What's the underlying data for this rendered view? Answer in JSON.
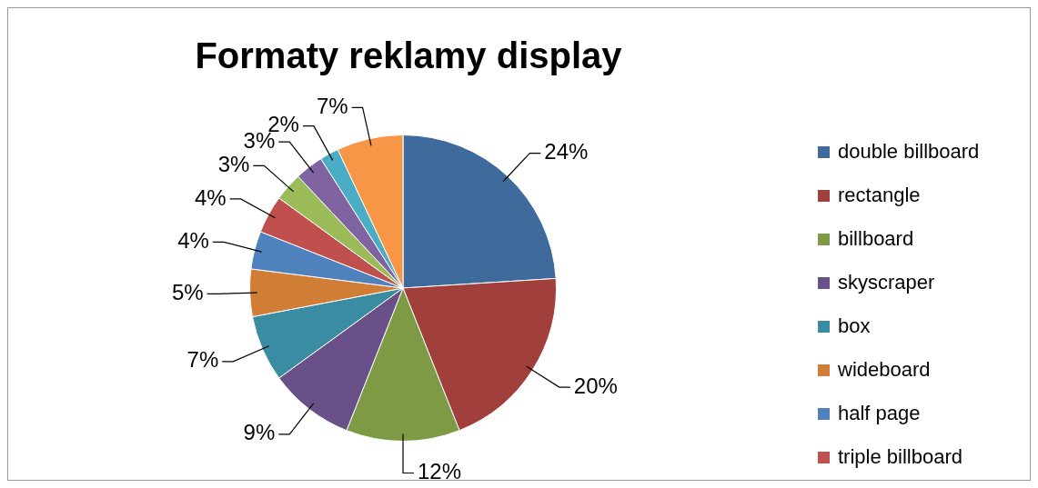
{
  "chart_data": {
    "type": "pie",
    "title": "Formaty reklamy display",
    "categories": [
      "double billboard",
      "rectangle",
      "billboard",
      "skyscraper",
      "box",
      "wideboard",
      "half page",
      "triple billboard",
      null,
      null,
      null,
      null
    ],
    "values": [
      24,
      20,
      12,
      9,
      7,
      5,
      4,
      4,
      3,
      3,
      2,
      7
    ],
    "value_labels": [
      "24%",
      "20%",
      "12%",
      "9%",
      "7%",
      "5%",
      "4%",
      "4%",
      "3%",
      "3%",
      "2%",
      "7%"
    ],
    "colors": [
      "#3f6a9c",
      "#a13f3c",
      "#7e9a45",
      "#6a5089",
      "#3a8ca3",
      "#d07d35",
      "#4f81bd",
      "#c0504d",
      "#9bbb59",
      "#8064a2",
      "#4bacc6",
      "#f79646"
    ],
    "legend": "right"
  }
}
